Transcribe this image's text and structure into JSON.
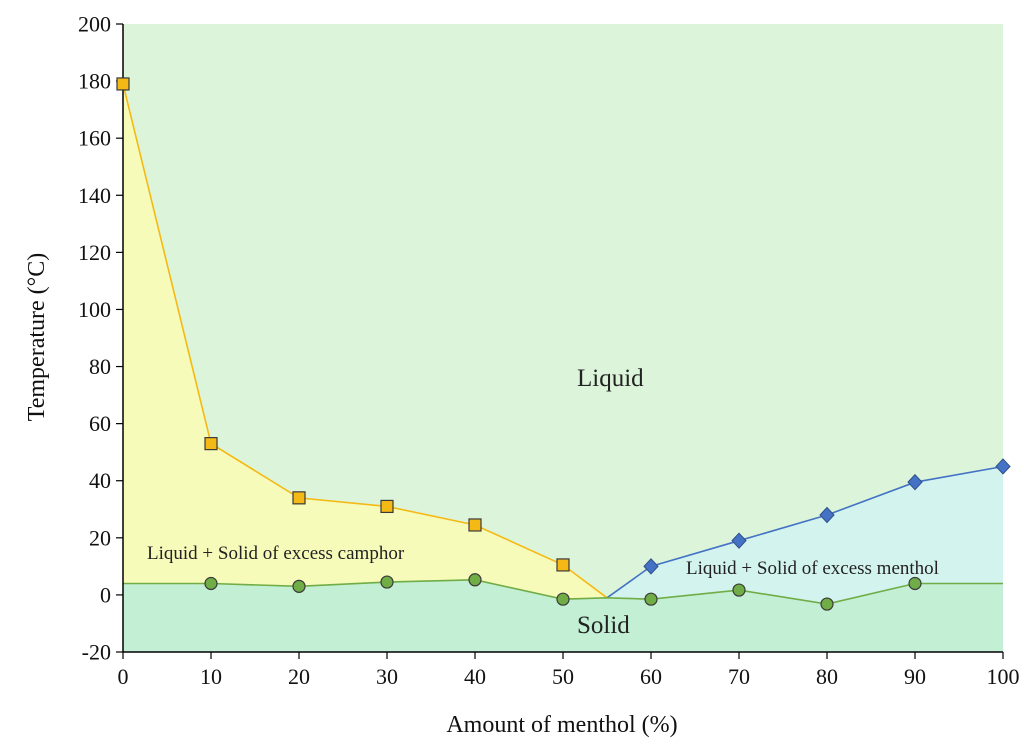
{
  "chart_data": {
    "type": "line",
    "title": "",
    "xlabel": "Amount of menthol (%)",
    "ylabel": "Temperature (°C)",
    "xlim": [
      0,
      100
    ],
    "ylim": [
      -20,
      200
    ],
    "x_ticks": [
      0,
      10,
      20,
      30,
      40,
      50,
      60,
      70,
      80,
      90,
      100
    ],
    "y_ticks": [
      -20,
      0,
      20,
      40,
      60,
      80,
      100,
      120,
      140,
      160,
      180,
      200
    ],
    "grid": false,
    "legend": "none",
    "eutectic_point": {
      "x": 55,
      "y": -1
    },
    "series": [
      {
        "marker": "square",
        "color": "#f5b915",
        "x": [
          0,
          10,
          20,
          30,
          40,
          50
        ],
        "y": [
          179,
          53,
          34,
          31,
          24.5,
          10.5
        ]
      },
      {
        "marker": "diamond",
        "color": "#4472c4",
        "x": [
          60,
          70,
          80,
          90,
          100
        ],
        "y": [
          10,
          19,
          28,
          39.5,
          45
        ]
      },
      {
        "marker": "circle",
        "color": "#70ad47",
        "x": [
          0,
          10,
          20,
          30,
          40,
          50,
          60,
          70,
          80,
          90,
          100
        ],
        "y": [
          4,
          4,
          3,
          4.5,
          5.3,
          -1.5,
          -1.5,
          1.7,
          -3.2,
          4,
          4
        ]
      }
    ],
    "regions": [
      {
        "label": "Liquid",
        "color": "#dcf5da"
      },
      {
        "label": "Liquid + Solid of excess camphor",
        "color": "#f7fbb9"
      },
      {
        "label": "Liquid + Solid of excess menthol",
        "color": "#d2f3ee"
      },
      {
        "label": "Solid",
        "color": "#c3efd4"
      }
    ]
  }
}
